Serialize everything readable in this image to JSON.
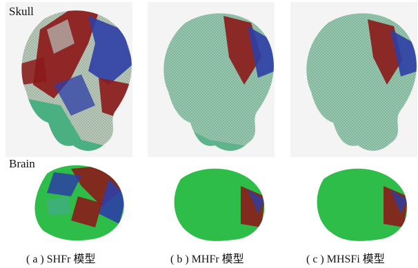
{
  "row_labels": {
    "skull": "Skull",
    "brain": "Brain"
  },
  "captions": [
    "( a ) SHFr 模型",
    "( b ) MHFr 模型",
    "( c ) MHSFi 模型"
  ],
  "colors": {
    "mesh_green": "#3fae7c",
    "mesh_gray": "#b9c2b9",
    "dark_red": "#8b1a1a",
    "blue": "#2d3ea5",
    "brain_green": "#2fbd4a"
  }
}
